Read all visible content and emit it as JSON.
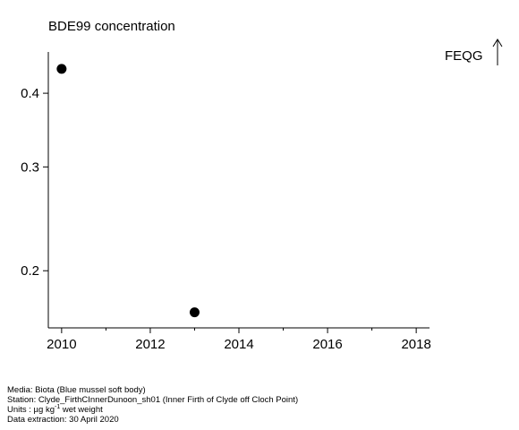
{
  "chart_data": {
    "type": "scatter",
    "title": "BDE99 concentration",
    "xlabel": "",
    "ylabel": "",
    "xlim": [
      2009.7,
      2018.3
    ],
    "ylim": [
      0.16,
      0.47
    ],
    "ylog": true,
    "x_ticks": [
      2010,
      2012,
      2014,
      2016,
      2018
    ],
    "x_tick_labels": [
      "2010",
      "2012",
      "2014",
      "2016",
      "2018"
    ],
    "x_minor_ticks": [
      2011,
      2013,
      2015,
      2017
    ],
    "y_ticks": [
      0.2,
      0.3,
      0.4
    ],
    "y_tick_labels": [
      "0.2",
      "0.3",
      "0.4"
    ],
    "points": [
      {
        "x": 2010,
        "y": 0.44
      },
      {
        "x": 2013,
        "y": 0.17
      }
    ],
    "marker_color": "#000000",
    "grid": false,
    "legend": {
      "label": "FEQG",
      "symbol": "arrow-up",
      "placement": "top-right"
    }
  },
  "footer": {
    "media": "Media: Biota (Blue mussel soft body)",
    "station": "Station: Clyde_FirthCInnerDunoon_sh01 (Inner Firth of Clyde off Cloch Point)",
    "units_prefix": "Units : µg kg",
    "units_exp": "-1",
    "units_suffix": " wet weight",
    "extraction": "Data extraction: 30 April 2020"
  }
}
